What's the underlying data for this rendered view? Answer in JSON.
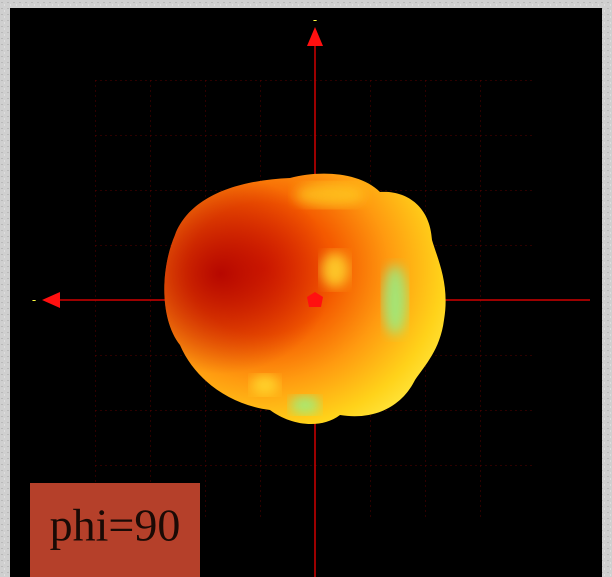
{
  "plot_label": "phi=90",
  "axes": {
    "vertical_label": "-",
    "horizontal_label": "-"
  }
}
